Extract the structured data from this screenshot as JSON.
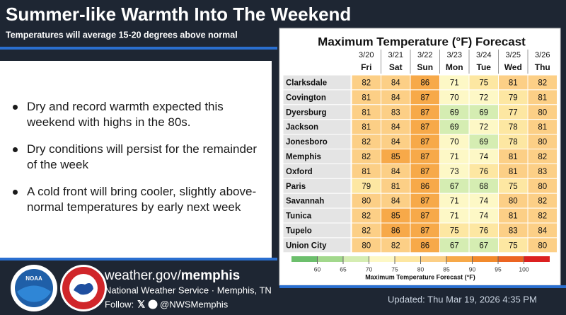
{
  "header": {
    "title": "Summer-like Warmth Into The Weekend",
    "subtitle": "Temperatures will average 15-20 degrees above normal"
  },
  "bullets": [
    "Dry and record warmth expected this weekend with highs in the 80s.",
    "Dry conditions will persist for the remainder of the week",
    "A cold front will bring cooler, slightly above-normal temperatures by early next week"
  ],
  "table": {
    "title": "Maximum Temperature (°F) Forecast",
    "dates": [
      "3/20",
      "3/21",
      "3/22",
      "3/23",
      "3/24",
      "3/25",
      "3/26"
    ],
    "days": [
      "Fri",
      "Sat",
      "Sun",
      "Mon",
      "Tue",
      "Wed",
      "Thu"
    ],
    "rows": [
      {
        "city": "Clarksdale",
        "values": [
          82,
          84,
          86,
          71,
          75,
          81,
          82
        ]
      },
      {
        "city": "Covington",
        "values": [
          81,
          84,
          87,
          70,
          72,
          79,
          81
        ]
      },
      {
        "city": "Dyersburg",
        "values": [
          81,
          83,
          87,
          69,
          69,
          77,
          80
        ]
      },
      {
        "city": "Jackson",
        "values": [
          81,
          84,
          87,
          69,
          72,
          78,
          81
        ]
      },
      {
        "city": "Jonesboro",
        "values": [
          82,
          84,
          87,
          70,
          69,
          78,
          80
        ]
      },
      {
        "city": "Memphis",
        "values": [
          82,
          85,
          87,
          71,
          74,
          81,
          82
        ]
      },
      {
        "city": "Oxford",
        "values": [
          81,
          84,
          87,
          73,
          76,
          81,
          83
        ]
      },
      {
        "city": "Paris",
        "values": [
          79,
          81,
          86,
          67,
          68,
          75,
          80
        ]
      },
      {
        "city": "Savannah",
        "values": [
          80,
          84,
          87,
          71,
          74,
          80,
          82
        ]
      },
      {
        "city": "Tunica",
        "values": [
          82,
          85,
          87,
          71,
          74,
          81,
          82
        ]
      },
      {
        "city": "Tupelo",
        "values": [
          82,
          86,
          87,
          75,
          76,
          83,
          84
        ]
      },
      {
        "city": "Union City",
        "values": [
          80,
          82,
          86,
          67,
          67,
          75,
          80
        ]
      }
    ],
    "colorbar": {
      "lim": [
        55,
        105
      ],
      "step": 5,
      "ticks": [
        60,
        65,
        70,
        75,
        80,
        85,
        90,
        95,
        100
      ],
      "colors": [
        "#6cbf6c",
        "#a2d88c",
        "#d5edb2",
        "#fdf8c6",
        "#fde7a2",
        "#fccf86",
        "#f7a949",
        "#f28a2c",
        "#ec6422",
        "#dc2020"
      ],
      "label": "Maximum Temperature Forecast (°F)"
    }
  },
  "footer": {
    "noaa": "NOAA",
    "url_prefix": "weather.gov/",
    "url_bold": "memphis",
    "office": "National Weather Service · Memphis, TN",
    "follow": "Follow:",
    "handle": "@NWSMemphis",
    "updated": "Updated: Thu Mar 19, 2026 4:35 PM"
  }
}
